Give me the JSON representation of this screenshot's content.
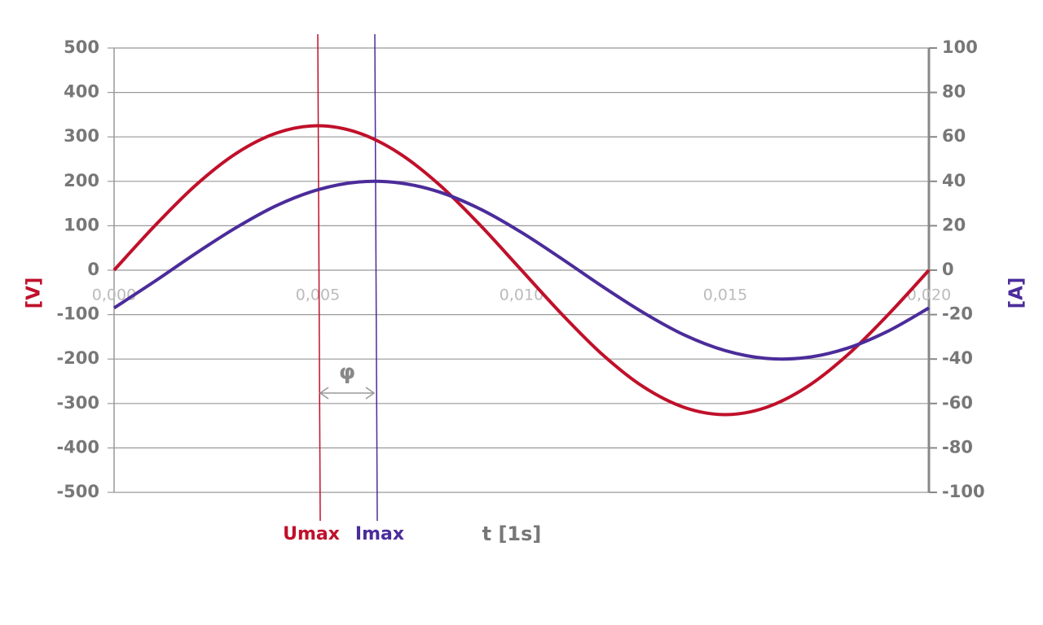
{
  "chart_data": {
    "type": "line",
    "x": [
      0,
      0.001,
      0.002,
      0.003,
      0.004,
      0.005,
      0.006,
      0.007,
      0.008,
      0.009,
      0.01,
      0.011,
      0.012,
      0.013,
      0.014,
      0.015,
      0.016,
      0.017,
      0.018,
      0.019,
      0.02
    ],
    "series": [
      {
        "name": "U",
        "color": "#c0102a",
        "axis": "y",
        "values": [
          0,
          100,
          191,
          263,
          309,
          325,
          309,
          263,
          191,
          100,
          0,
          -100,
          -191,
          -263,
          -309,
          -325,
          -309,
          -263,
          -191,
          -100,
          0
        ]
      },
      {
        "name": "I",
        "color": "#4b2c9a",
        "axis": "y2",
        "values": [
          -17,
          -5,
          7.5,
          19.2,
          29.2,
          36.2,
          39.7,
          39.3,
          35.1,
          27.4,
          17,
          5,
          -7.5,
          -19.2,
          -29.2,
          -36.2,
          -39.7,
          -39.3,
          -35.1,
          -27.4,
          -17
        ]
      }
    ],
    "xlim": [
      0,
      0.02
    ],
    "xticks": [
      {
        "value": 0,
        "label": "0,000"
      },
      {
        "value": 0.005,
        "label": "0,005"
      },
      {
        "value": 0.01,
        "label": "0,010"
      },
      {
        "value": 0.015,
        "label": "0,015"
      },
      {
        "value": 0.02,
        "label": "0,020"
      }
    ],
    "ylim": [
      -500,
      500
    ],
    "yticks": [
      -500,
      -400,
      -300,
      -200,
      -100,
      0,
      100,
      200,
      300,
      400,
      500
    ],
    "y2lim": [
      -100,
      100
    ],
    "y2ticks": [
      -100,
      -80,
      -60,
      -40,
      -20,
      0,
      20,
      40,
      60,
      80,
      100
    ],
    "y_label": "[V]",
    "y2_label": "[A]",
    "x_label": "t [1s]",
    "grid": true,
    "markers": [
      {
        "label": "Umax",
        "x": 0.005,
        "color": "#c0102a"
      },
      {
        "label": "Imax",
        "x": 0.0064,
        "color": "#4b2c9a"
      }
    ],
    "phase_label": "φ"
  }
}
